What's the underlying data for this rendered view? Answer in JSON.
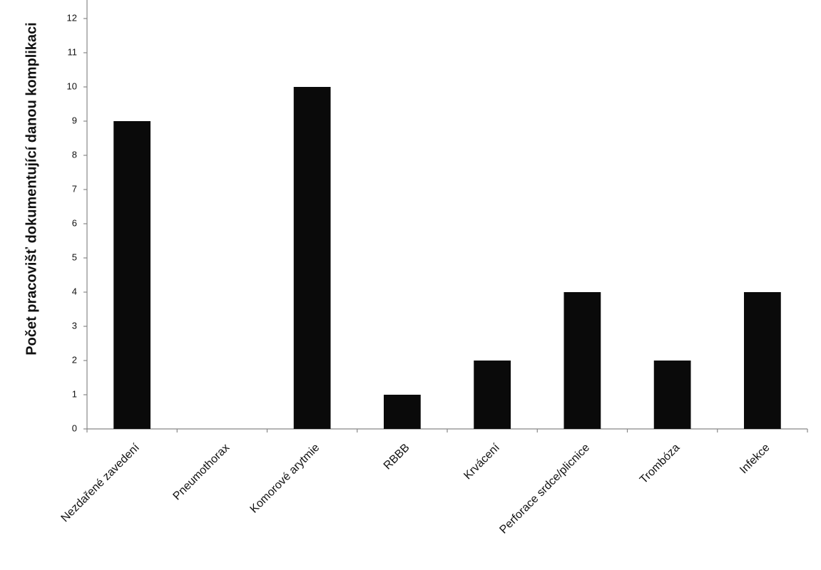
{
  "chart_data": {
    "type": "bar",
    "y_label": "Počet pracovišť dokumentující danou komplikaci",
    "categories": [
      "Nezdařené zavedení",
      "Pneumothorax",
      "Komorové arytmie",
      "RBBB",
      "Krvácení",
      "Perforace srdce/plicnice",
      "Trombóza",
      "Infekce"
    ],
    "values": [
      9,
      0,
      10,
      1,
      2,
      4,
      2,
      4
    ],
    "color": "#0a0a0a",
    "ylim": [
      0,
      12
    ],
    "yticks": [
      0,
      1,
      2,
      3,
      4,
      5,
      6,
      7,
      8,
      9,
      10,
      11,
      12
    ],
    "grid": false
  }
}
